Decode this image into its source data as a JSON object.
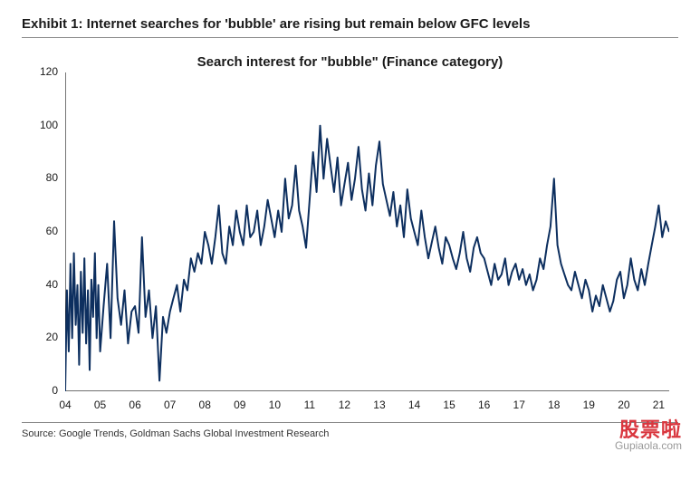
{
  "exhibit_title": "Exhibit 1: Internet searches for 'bubble' are rising but remain below GFC levels",
  "source": "Source: Google Trends, Goldman Sachs Global Investment Research",
  "watermark": {
    "line1": "股票啦",
    "line2": "Gupiaola.com"
  },
  "chart": {
    "type": "line",
    "title": "Search interest for \"bubble\" (Finance category)",
    "line_color": "#0d2f5f",
    "line_width": 2,
    "background_color": "#ffffff",
    "axis_color": "#1a1a1a",
    "label_fontsize": 12,
    "title_fontsize": 15,
    "ylim": [
      0,
      120
    ],
    "ytick_step": 20,
    "yticks": [
      0,
      20,
      40,
      60,
      80,
      100,
      120
    ],
    "xlim": [
      2004,
      2021.3
    ],
    "xticks": [
      2004,
      2005,
      2006,
      2007,
      2008,
      2009,
      2010,
      2011,
      2012,
      2013,
      2014,
      2015,
      2016,
      2017,
      2018,
      2019,
      2020,
      2021
    ],
    "xtick_labels": [
      "04",
      "05",
      "06",
      "07",
      "08",
      "09",
      "10",
      "11",
      "12",
      "13",
      "14",
      "15",
      "16",
      "17",
      "18",
      "19",
      "20",
      "21"
    ],
    "x": [
      2004.0,
      2004.05,
      2004.1,
      2004.15,
      2004.2,
      2004.25,
      2004.3,
      2004.35,
      2004.4,
      2004.45,
      2004.5,
      2004.55,
      2004.6,
      2004.65,
      2004.7,
      2004.75,
      2004.8,
      2004.85,
      2004.9,
      2004.95,
      2005.0,
      2005.1,
      2005.2,
      2005.3,
      2005.4,
      2005.5,
      2005.6,
      2005.7,
      2005.8,
      2005.9,
      2006.0,
      2006.1,
      2006.2,
      2006.3,
      2006.4,
      2006.5,
      2006.6,
      2006.7,
      2006.8,
      2006.9,
      2007.0,
      2007.1,
      2007.2,
      2007.3,
      2007.4,
      2007.5,
      2007.6,
      2007.7,
      2007.8,
      2007.9,
      2008.0,
      2008.1,
      2008.2,
      2008.3,
      2008.4,
      2008.5,
      2008.6,
      2008.7,
      2008.8,
      2008.9,
      2009.0,
      2009.1,
      2009.2,
      2009.3,
      2009.4,
      2009.5,
      2009.6,
      2009.7,
      2009.8,
      2009.9,
      2010.0,
      2010.1,
      2010.2,
      2010.3,
      2010.4,
      2010.5,
      2010.6,
      2010.7,
      2010.8,
      2010.9,
      2011.0,
      2011.1,
      2011.2,
      2011.3,
      2011.4,
      2011.5,
      2011.6,
      2011.7,
      2011.8,
      2011.9,
      2012.0,
      2012.1,
      2012.2,
      2012.3,
      2012.4,
      2012.5,
      2012.6,
      2012.7,
      2012.8,
      2012.9,
      2013.0,
      2013.1,
      2013.2,
      2013.3,
      2013.4,
      2013.5,
      2013.6,
      2013.7,
      2013.8,
      2013.9,
      2014.0,
      2014.1,
      2014.2,
      2014.3,
      2014.4,
      2014.5,
      2014.6,
      2014.7,
      2014.8,
      2014.9,
      2015.0,
      2015.1,
      2015.2,
      2015.3,
      2015.4,
      2015.5,
      2015.6,
      2015.7,
      2015.8,
      2015.9,
      2016.0,
      2016.1,
      2016.2,
      2016.3,
      2016.4,
      2016.5,
      2016.6,
      2016.7,
      2016.8,
      2016.9,
      2017.0,
      2017.1,
      2017.2,
      2017.3,
      2017.4,
      2017.5,
      2017.6,
      2017.7,
      2017.8,
      2017.9,
      2018.0,
      2018.1,
      2018.2,
      2018.3,
      2018.4,
      2018.5,
      2018.6,
      2018.7,
      2018.8,
      2018.9,
      2019.0,
      2019.1,
      2019.2,
      2019.3,
      2019.4,
      2019.5,
      2019.6,
      2019.7,
      2019.8,
      2019.9,
      2020.0,
      2020.1,
      2020.2,
      2020.3,
      2020.4,
      2020.5,
      2020.6,
      2020.7,
      2020.8,
      2020.9,
      2021.0,
      2021.1,
      2021.2,
      2021.3
    ],
    "y": [
      0,
      38,
      15,
      48,
      20,
      52,
      25,
      40,
      10,
      45,
      22,
      50,
      18,
      38,
      8,
      42,
      28,
      52,
      20,
      40,
      15,
      32,
      48,
      20,
      64,
      35,
      25,
      38,
      18,
      30,
      32,
      22,
      58,
      28,
      38,
      20,
      32,
      4,
      28,
      22,
      30,
      35,
      40,
      30,
      42,
      38,
      50,
      45,
      52,
      48,
      60,
      55,
      48,
      58,
      70,
      52,
      48,
      62,
      55,
      68,
      60,
      55,
      70,
      58,
      60,
      68,
      55,
      62,
      72,
      65,
      58,
      68,
      60,
      80,
      65,
      70,
      85,
      68,
      62,
      54,
      72,
      90,
      75,
      100,
      80,
      95,
      85,
      75,
      88,
      70,
      78,
      86,
      72,
      80,
      92,
      76,
      68,
      82,
      70,
      85,
      94,
      78,
      72,
      66,
      75,
      62,
      70,
      58,
      76,
      65,
      60,
      55,
      68,
      58,
      50,
      56,
      62,
      54,
      48,
      58,
      55,
      50,
      46,
      52,
      60,
      50,
      45,
      54,
      58,
      52,
      50,
      45,
      40,
      48,
      42,
      44,
      50,
      40,
      45,
      48,
      42,
      46,
      40,
      44,
      38,
      42,
      50,
      46,
      55,
      62,
      80,
      55,
      48,
      44,
      40,
      38,
      45,
      40,
      35,
      42,
      38,
      30,
      36,
      32,
      40,
      35,
      30,
      34,
      42,
      45,
      35,
      40,
      50,
      42,
      38,
      46,
      40,
      48,
      55,
      62,
      70,
      58,
      64,
      60
    ]
  }
}
